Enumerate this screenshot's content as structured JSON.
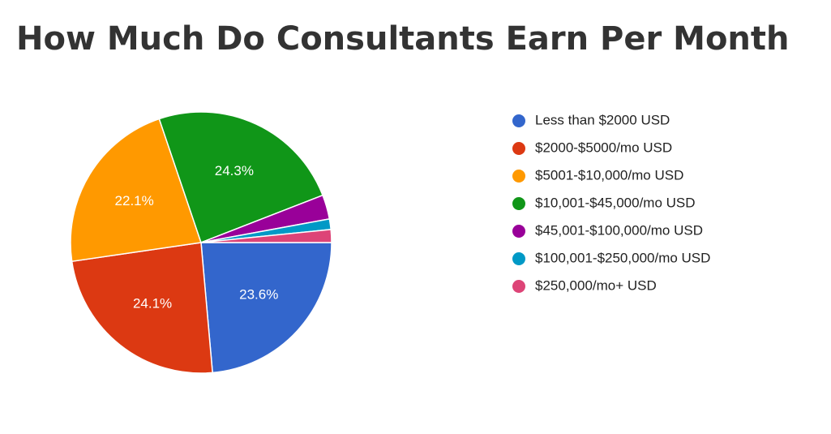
{
  "chart_data": {
    "type": "pie",
    "title": "How Much Do Consultants Earn Per Month",
    "categories": [
      "Less than $2000 USD",
      "$2000-$5000/mo USD",
      "$5001-$10,000/mo USD",
      "$10,001-$45,000/mo USD",
      "$45,001-$100,000/mo USD",
      "$100,001-$250,000/mo USD",
      "$250,000/mo+ USD"
    ],
    "values": [
      23.6,
      24.1,
      22.1,
      24.3,
      3.0,
      1.3,
      1.6
    ],
    "value_labels": [
      "23.6%",
      "24.1%",
      "22.1%",
      "24.3%",
      null,
      null,
      null
    ],
    "colors": [
      "#3366cc",
      "#dc3912",
      "#ff9900",
      "#109618",
      "#990099",
      "#0099c6",
      "#dd4477"
    ],
    "legend": "right"
  }
}
